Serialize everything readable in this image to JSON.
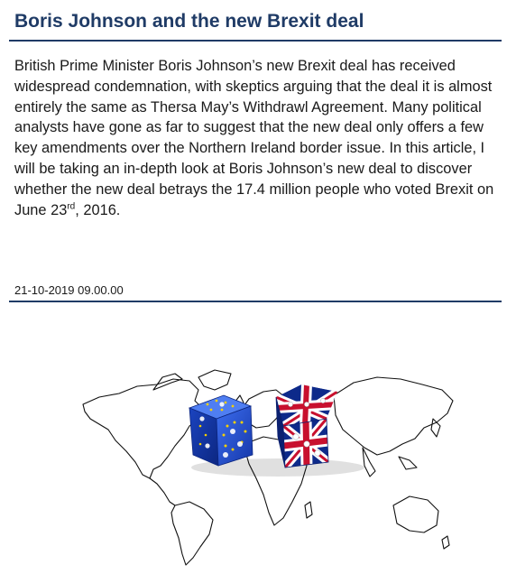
{
  "article": {
    "title": "Boris Johnson and the new Brexit deal",
    "body_main": "British Prime Minister Boris Johnson’s new Brexit deal has received widespread condemnation, with skeptics arguing that the deal it is almost entirely the same as Thersa May’s Withdrawl Agreement. Many political analysts have gone as far to suggest that the new deal only offers a few key amendments over the Northern Ireland border issue. In this article, I will be taking an in-depth look at Boris Johnson’s new deal to discover whether the new deal betrays the 17.4 million people who voted Brexit on June 23",
    "body_sup": "rd",
    "body_end": ", 2016.",
    "date": "21-10-2019 09.00.00"
  },
  "image": {
    "icons": [
      "world-map-icon",
      "eu-flag-die-icon",
      "union-jack-die-icon"
    ],
    "colors": {
      "eu_blue": "#1f4fd0",
      "uk_red": "#c8102e",
      "uk_blue": "#0d2a8a",
      "star_yellow": "#f5d000",
      "title_navy": "#1f3b66"
    }
  }
}
